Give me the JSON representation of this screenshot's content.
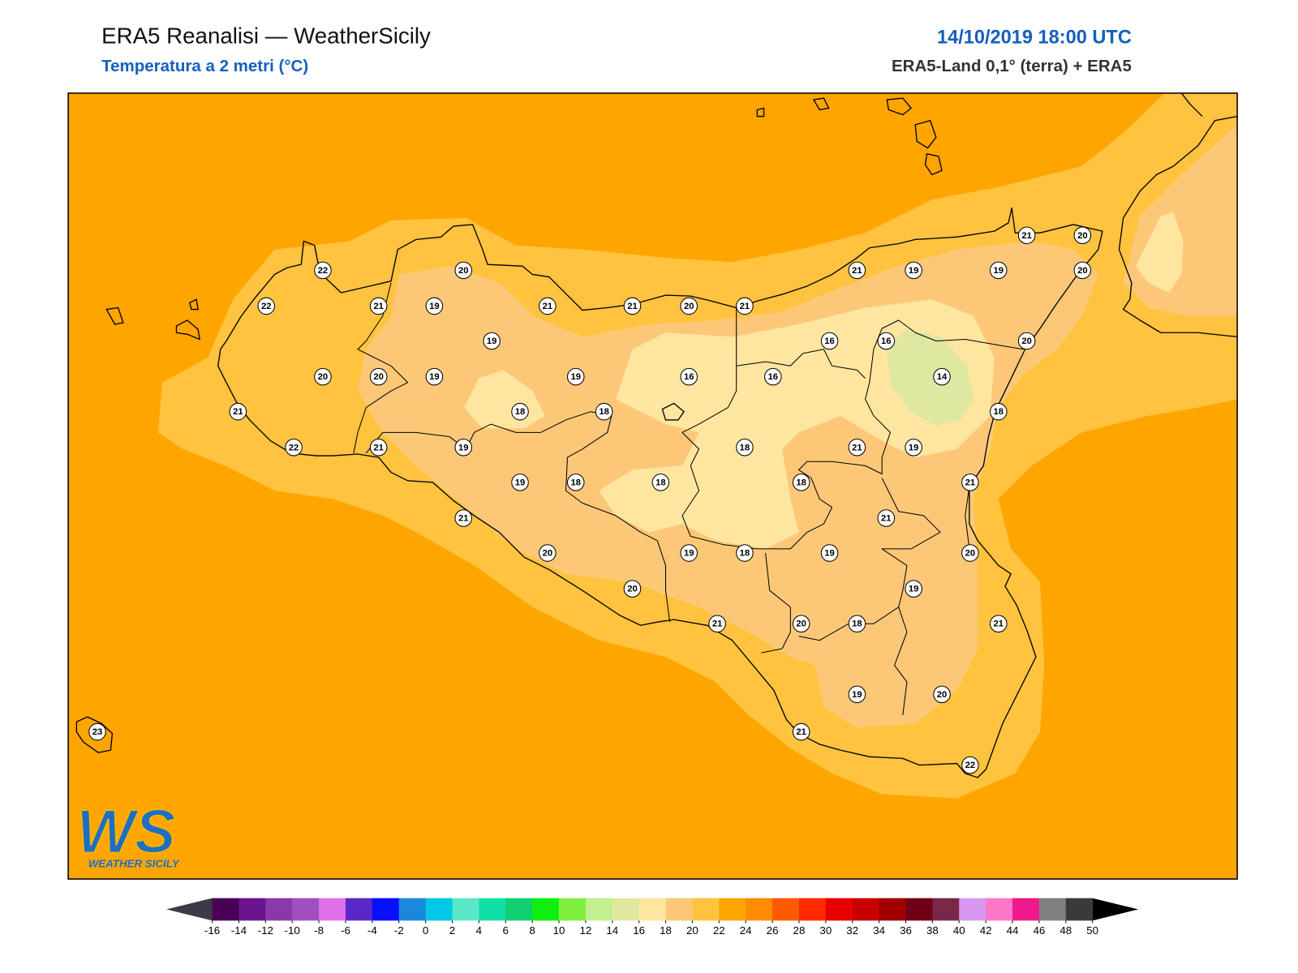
{
  "header": {
    "title": "ERA5 Reanalisi — WeatherSicily",
    "subtitle": "Temperatura a 2 metri (°C)",
    "datetime": "14/10/2019 18:00 UTC",
    "source": "ERA5-Land 0,1° (terra) + ERA5"
  },
  "stations": [
    22,
    22,
    21,
    19,
    20,
    19,
    21,
    21,
    20,
    21,
    21,
    19,
    19,
    21,
    20,
    20,
    20,
    16,
    16,
    14,
    18,
    16,
    16,
    19,
    19,
    20,
    20,
    21,
    22,
    21,
    19,
    18,
    18,
    19,
    18,
    18,
    18,
    18,
    21,
    19,
    21,
    21,
    20,
    19,
    18,
    19,
    20,
    21,
    20,
    21,
    20,
    18,
    19,
    21,
    19,
    20,
    21,
    22,
    23
  ],
  "logo": {
    "mark": "WS",
    "name": "WEATHER SICILY"
  },
  "colorbar": {
    "ticks": [
      -16,
      -14,
      -12,
      -10,
      -8,
      -6,
      -4,
      -2,
      0,
      2,
      4,
      6,
      8,
      10,
      12,
      14,
      16,
      18,
      20,
      22,
      24,
      26,
      28,
      30,
      32,
      34,
      36,
      38,
      40,
      42,
      44,
      46,
      48,
      50
    ],
    "colors": [
      "#4a0055",
      "#6b1490",
      "#8a3aa8",
      "#a050c0",
      "#e070e8",
      "#5a28c8",
      "#0a10ff",
      "#1a88dc",
      "#00c8e6",
      "#5ae8c8",
      "#10e0a8",
      "#10d070",
      "#10f010",
      "#80f040",
      "#c0f090",
      "#e0e8a0",
      "#ffe6a0",
      "#fcc878",
      "#ffc340",
      "#ffa500",
      "#ff8c00",
      "#ff5a00",
      "#ff2a00",
      "#e80000",
      "#c80000",
      "#a00000",
      "#700018",
      "#7a2848",
      "#d898f0",
      "#ff78c8",
      "#f0188c",
      "#808080",
      "#3a3a3a"
    ],
    "under_color": "#3a3a48",
    "over_color": "#000000"
  }
}
